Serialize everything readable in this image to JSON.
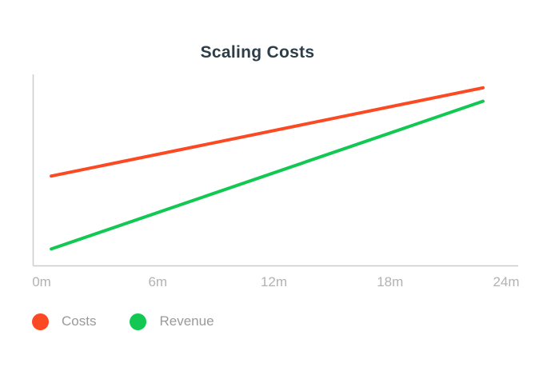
{
  "chart": {
    "title": "Scaling Costs"
  },
  "chart_data": {
    "type": "line",
    "title": "Scaling Costs",
    "xlabel": "",
    "ylabel": "",
    "x_unit": "months",
    "xlim": [
      0,
      24
    ],
    "ylim": [
      0,
      100
    ],
    "grid": false,
    "y_axis_labels_visible": false,
    "legend_position": "bottom-left",
    "x_ticks": [
      {
        "value": 0,
        "label": "0m"
      },
      {
        "value": 6,
        "label": "6m"
      },
      {
        "value": 12,
        "label": "12m"
      },
      {
        "value": 18,
        "label": "18m"
      },
      {
        "value": 24,
        "label": "24m"
      }
    ],
    "series": [
      {
        "name": "Costs",
        "color": "#fb4a23",
        "x": [
          0.5,
          22.8
        ],
        "values": [
          47,
          93
        ]
      },
      {
        "name": "Revenue",
        "color": "#12c853",
        "x": [
          0.5,
          22.8
        ],
        "values": [
          9,
          86
        ]
      }
    ],
    "colors": {
      "axis": "#cccccc",
      "tick_label": "#b2b2b5",
      "legend_label": "#9a9a9a",
      "title": "#2e3e48"
    }
  }
}
